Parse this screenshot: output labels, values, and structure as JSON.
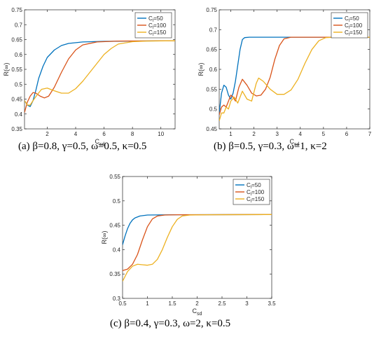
{
  "colors": {
    "s50": "#0072BD",
    "s100": "#D95319",
    "s150": "#EDB120",
    "axis": "#262626"
  },
  "chart_data": [
    {
      "type": "line",
      "caption": "(a) β=0.8, γ=0.5, ω=0.5, κ=0.5",
      "xlabel": "Csd",
      "ylabel": "R(∞)",
      "xlim": [
        0.4,
        11
      ],
      "ylim": [
        0.35,
        0.75
      ],
      "xticks": [
        "2",
        "4",
        "6",
        "8",
        "10"
      ],
      "yticks": [
        "0.35",
        "0.4",
        "0.45",
        "0.5",
        "0.55",
        "0.6",
        "0.65",
        "0.7",
        "0.75"
      ],
      "legend_position": "top-right",
      "series": [
        {
          "name": "Cl=50",
          "color": "#0072BD",
          "points": [
            [
              0.4,
              0.445
            ],
            [
              0.6,
              0.43
            ],
            [
              0.8,
              0.425
            ],
            [
              1.0,
              0.445
            ],
            [
              1.2,
              0.48
            ],
            [
              1.4,
              0.52
            ],
            [
              1.7,
              0.56
            ],
            [
              2.0,
              0.59
            ],
            [
              2.5,
              0.615
            ],
            [
              3.0,
              0.63
            ],
            [
              3.5,
              0.637
            ],
            [
              4.5,
              0.642
            ],
            [
              6,
              0.644
            ],
            [
              8,
              0.645
            ],
            [
              11,
              0.646
            ]
          ]
        },
        {
          "name": "Cl=100",
          "color": "#D95319",
          "points": [
            [
              0.4,
              0.405
            ],
            [
              0.6,
              0.44
            ],
            [
              0.8,
              0.46
            ],
            [
              1.0,
              0.472
            ],
            [
              1.2,
              0.47
            ],
            [
              1.5,
              0.46
            ],
            [
              1.8,
              0.454
            ],
            [
              2.1,
              0.46
            ],
            [
              2.5,
              0.49
            ],
            [
              3.0,
              0.54
            ],
            [
              3.5,
              0.585
            ],
            [
              4.0,
              0.615
            ],
            [
              4.5,
              0.632
            ],
            [
              5.5,
              0.642
            ],
            [
              7,
              0.645
            ],
            [
              11,
              0.646
            ]
          ]
        },
        {
          "name": "Cl=150",
          "color": "#EDB120",
          "points": [
            [
              0.4,
              0.445
            ],
            [
              0.6,
              0.43
            ],
            [
              0.8,
              0.43
            ],
            [
              1.0,
              0.445
            ],
            [
              1.3,
              0.465
            ],
            [
              1.6,
              0.483
            ],
            [
              2.0,
              0.487
            ],
            [
              2.5,
              0.478
            ],
            [
              3.0,
              0.47
            ],
            [
              3.5,
              0.47
            ],
            [
              4.0,
              0.485
            ],
            [
              4.5,
              0.51
            ],
            [
              5.0,
              0.54
            ],
            [
              5.5,
              0.57
            ],
            [
              6.0,
              0.6
            ],
            [
              6.5,
              0.62
            ],
            [
              7.0,
              0.635
            ],
            [
              8.0,
              0.643
            ],
            [
              9,
              0.645
            ],
            [
              11,
              0.646
            ]
          ]
        }
      ]
    },
    {
      "type": "line",
      "caption": "(b) β=0.5, γ=0.3, ω=1, κ=2",
      "xlabel": "Csd",
      "ylabel": "R(∞)",
      "xlim": [
        0.5,
        7
      ],
      "ylim": [
        0.45,
        0.75
      ],
      "xticks": [
        "1",
        "2",
        "3",
        "4",
        "5",
        "6",
        "7"
      ],
      "yticks": [
        "0.45",
        "0.5",
        "0.55",
        "0.6",
        "0.65",
        "0.7",
        "0.75"
      ],
      "legend_position": "top-right",
      "series": [
        {
          "name": "Cl=50",
          "color": "#0072BD",
          "points": [
            [
              0.5,
              0.49
            ],
            [
              0.6,
              0.54
            ],
            [
              0.7,
              0.56
            ],
            [
              0.8,
              0.555
            ],
            [
              0.9,
              0.535
            ],
            [
              1.0,
              0.525
            ],
            [
              1.1,
              0.54
            ],
            [
              1.2,
              0.57
            ],
            [
              1.3,
              0.61
            ],
            [
              1.4,
              0.65
            ],
            [
              1.5,
              0.675
            ],
            [
              1.6,
              0.68
            ],
            [
              1.8,
              0.681
            ],
            [
              7,
              0.681
            ]
          ]
        },
        {
          "name": "Cl=100",
          "color": "#D95319",
          "points": [
            [
              0.5,
              0.485
            ],
            [
              0.6,
              0.505
            ],
            [
              0.7,
              0.51
            ],
            [
              0.8,
              0.505
            ],
            [
              0.9,
              0.52
            ],
            [
              1.0,
              0.535
            ],
            [
              1.1,
              0.53
            ],
            [
              1.2,
              0.52
            ],
            [
              1.35,
              0.555
            ],
            [
              1.5,
              0.575
            ],
            [
              1.7,
              0.56
            ],
            [
              1.9,
              0.54
            ],
            [
              2.1,
              0.533
            ],
            [
              2.3,
              0.535
            ],
            [
              2.5,
              0.55
            ],
            [
              2.7,
              0.58
            ],
            [
              2.9,
              0.625
            ],
            [
              3.1,
              0.66
            ],
            [
              3.3,
              0.677
            ],
            [
              3.6,
              0.681
            ],
            [
              7,
              0.681
            ]
          ]
        },
        {
          "name": "Cl=150",
          "color": "#EDB120",
          "points": [
            [
              0.5,
              0.47
            ],
            [
              0.6,
              0.49
            ],
            [
              0.7,
              0.49
            ],
            [
              0.8,
              0.505
            ],
            [
              0.9,
              0.5
            ],
            [
              1.0,
              0.52
            ],
            [
              1.15,
              0.53
            ],
            [
              1.3,
              0.515
            ],
            [
              1.5,
              0.545
            ],
            [
              1.7,
              0.525
            ],
            [
              1.9,
              0.52
            ],
            [
              2.1,
              0.565
            ],
            [
              2.2,
              0.578
            ],
            [
              2.4,
              0.57
            ],
            [
              2.7,
              0.55
            ],
            [
              3.0,
              0.537
            ],
            [
              3.3,
              0.537
            ],
            [
              3.6,
              0.548
            ],
            [
              3.9,
              0.575
            ],
            [
              4.2,
              0.615
            ],
            [
              4.5,
              0.65
            ],
            [
              4.8,
              0.672
            ],
            [
              5.1,
              0.68
            ],
            [
              5.5,
              0.681
            ],
            [
              7,
              0.681
            ]
          ]
        }
      ]
    },
    {
      "type": "line",
      "caption": "(c) β=0.4, γ=0.3, ω=2, κ=0.5",
      "xlabel": "Csd",
      "ylabel": "R(∞)",
      "xlim": [
        0.5,
        3.5
      ],
      "ylim": [
        0.3,
        0.55
      ],
      "xticks": [
        "0.5",
        "1",
        "1.5",
        "2",
        "2.5",
        "3",
        "3.5"
      ],
      "yticks": [
        "0.3",
        "0.35",
        "0.4",
        "0.45",
        "0.5",
        "0.55"
      ],
      "legend_position": "top-right",
      "series": [
        {
          "name": "Cl=50",
          "color": "#0072BD",
          "points": [
            [
              0.5,
              0.41
            ],
            [
              0.55,
              0.428
            ],
            [
              0.6,
              0.443
            ],
            [
              0.65,
              0.454
            ],
            [
              0.7,
              0.461
            ],
            [
              0.75,
              0.465
            ],
            [
              0.85,
              0.469
            ],
            [
              1.0,
              0.471
            ],
            [
              1.5,
              0.4715
            ],
            [
              3.5,
              0.472
            ]
          ]
        },
        {
          "name": "Cl=100",
          "color": "#D95319",
          "points": [
            [
              0.5,
              0.357
            ],
            [
              0.6,
              0.36
            ],
            [
              0.7,
              0.37
            ],
            [
              0.8,
              0.39
            ],
            [
              0.9,
              0.42
            ],
            [
              1.0,
              0.447
            ],
            [
              1.1,
              0.463
            ],
            [
              1.2,
              0.469
            ],
            [
              1.35,
              0.471
            ],
            [
              1.6,
              0.4715
            ],
            [
              3.5,
              0.472
            ]
          ]
        },
        {
          "name": "Cl=150",
          "color": "#EDB120",
          "points": [
            [
              0.5,
              0.335
            ],
            [
              0.6,
              0.355
            ],
            [
              0.7,
              0.366
            ],
            [
              0.8,
              0.37
            ],
            [
              0.9,
              0.369
            ],
            [
              1.0,
              0.368
            ],
            [
              1.1,
              0.37
            ],
            [
              1.2,
              0.38
            ],
            [
              1.3,
              0.4
            ],
            [
              1.4,
              0.425
            ],
            [
              1.5,
              0.447
            ],
            [
              1.6,
              0.462
            ],
            [
              1.7,
              0.469
            ],
            [
              1.85,
              0.471
            ],
            [
              2.2,
              0.4715
            ],
            [
              3.5,
              0.472
            ]
          ]
        }
      ]
    }
  ]
}
